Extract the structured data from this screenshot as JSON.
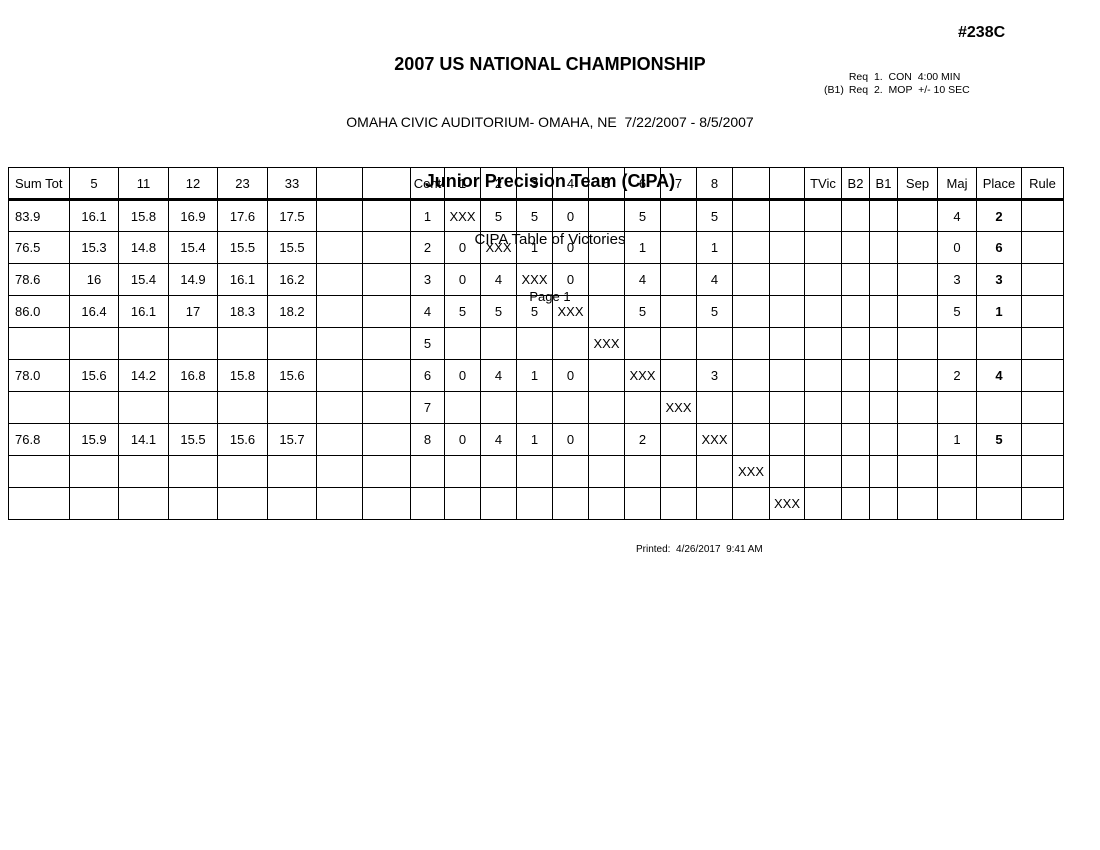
{
  "header": {
    "title": "2007 US NATIONAL CHAMPIONSHIP",
    "venue": "OMAHA CIVIC AUDITORIUM- OMAHA, NE  7/22/2007 - 8/5/2007",
    "event": "Junior Precision Team (CIPA)",
    "table_title": "CIPA Table of Victories",
    "page_label": "Page 1",
    "entry_number": "#238C",
    "requirements": [
      {
        "prefix": "",
        "text": "Req  1.  CON  4:00 MIN"
      },
      {
        "prefix": "(B1)",
        "text": "Req  2.  MOP  +/- 10 SEC"
      }
    ]
  },
  "table": {
    "columns": [
      "Sum Tot",
      "5",
      "11",
      "12",
      "23",
      "33",
      "",
      "",
      "Cont",
      "1",
      "2",
      "3",
      "4",
      "5",
      "6",
      "7",
      "8",
      "",
      "",
      "TVic",
      "B2",
      "B1",
      "Sep",
      "Maj",
      "Place",
      "Rule"
    ],
    "bold_column": "Place",
    "rows": [
      [
        "83.9",
        "16.1",
        "15.8",
        "16.9",
        "17.6",
        "17.5",
        "",
        "",
        "1",
        "XXX",
        "5",
        "5",
        "0",
        "",
        "5",
        "",
        "5",
        "",
        "",
        "",
        "",
        "",
        "",
        "4",
        "2",
        ""
      ],
      [
        "76.5",
        "15.3",
        "14.8",
        "15.4",
        "15.5",
        "15.5",
        "",
        "",
        "2",
        "0",
        "XXX",
        "1",
        "0",
        "",
        "1",
        "",
        "1",
        "",
        "",
        "",
        "",
        "",
        "",
        "0",
        "6",
        ""
      ],
      [
        "78.6",
        "16",
        "15.4",
        "14.9",
        "16.1",
        "16.2",
        "",
        "",
        "3",
        "0",
        "4",
        "XXX",
        "0",
        "",
        "4",
        "",
        "4",
        "",
        "",
        "",
        "",
        "",
        "",
        "3",
        "3",
        ""
      ],
      [
        "86.0",
        "16.4",
        "16.1",
        "17",
        "18.3",
        "18.2",
        "",
        "",
        "4",
        "5",
        "5",
        "5",
        "XXX",
        "",
        "5",
        "",
        "5",
        "",
        "",
        "",
        "",
        "",
        "",
        "5",
        "1",
        ""
      ],
      [
        "",
        "",
        "",
        "",
        "",
        "",
        "",
        "",
        "5",
        "",
        "",
        "",
        "",
        "XXX",
        "",
        "",
        "",
        "",
        "",
        "",
        "",
        "",
        "",
        "",
        "",
        ""
      ],
      [
        "78.0",
        "15.6",
        "14.2",
        "16.8",
        "15.8",
        "15.6",
        "",
        "",
        "6",
        "0",
        "4",
        "1",
        "0",
        "",
        "XXX",
        "",
        "3",
        "",
        "",
        "",
        "",
        "",
        "",
        "2",
        "4",
        ""
      ],
      [
        "",
        "",
        "",
        "",
        "",
        "",
        "",
        "",
        "7",
        "",
        "",
        "",
        "",
        "",
        "",
        "XXX",
        "",
        "",
        "",
        "",
        "",
        "",
        "",
        "",
        "",
        ""
      ],
      [
        "76.8",
        "15.9",
        "14.1",
        "15.5",
        "15.6",
        "15.7",
        "",
        "",
        "8",
        "0",
        "4",
        "1",
        "0",
        "",
        "2",
        "",
        "XXX",
        "",
        "",
        "",
        "",
        "",
        "",
        "1",
        "5",
        ""
      ],
      [
        "",
        "",
        "",
        "",
        "",
        "",
        "",
        "",
        "",
        "",
        "",
        "",
        "",
        "",
        "",
        "",
        "",
        "XXX",
        "",
        "",
        "",
        "",
        "",
        "",
        "",
        ""
      ],
      [
        "",
        "",
        "",
        "",
        "",
        "",
        "",
        "",
        "",
        "",
        "",
        "",
        "",
        "",
        "",
        "",
        "",
        "",
        "XXX",
        "",
        "",
        "",
        "",
        "",
        "",
        ""
      ]
    ]
  },
  "footer": {
    "printed": "Printed:  4/26/2017  9:41 AM"
  }
}
